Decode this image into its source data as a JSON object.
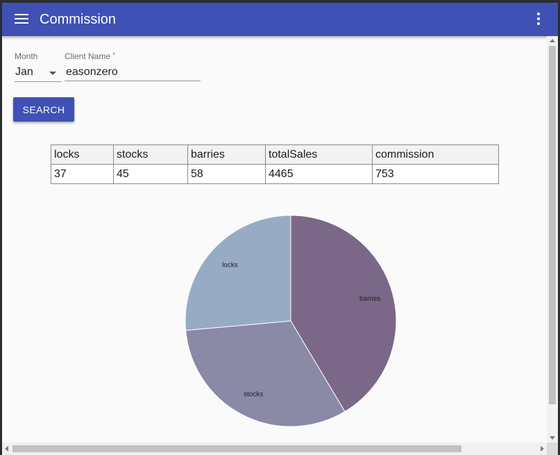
{
  "app": {
    "title": "Commission",
    "menu_icon": "hamburger-menu-icon",
    "more_icon": "more-vert-icon",
    "primary_color": "#3f51b5"
  },
  "form": {
    "month_label": "Month",
    "month_value": "Jan",
    "client_label": "Client Name",
    "client_required_mark": "*",
    "client_value": "easonzero",
    "search_label": "SEARCH"
  },
  "table": {
    "headers": [
      "locks",
      "stocks",
      "barries",
      "totalSales",
      "commission"
    ],
    "rows": [
      [
        "37",
        "45",
        "58",
        "4465",
        "753"
      ]
    ]
  },
  "chart_data": {
    "type": "pie",
    "title": "",
    "categories": [
      "barries",
      "stocks",
      "locks"
    ],
    "values": [
      58,
      45,
      37
    ],
    "colors": [
      "#7b6888",
      "#8a89a6",
      "#98abc5"
    ],
    "start_angle_deg": 0,
    "direction": "clockwise"
  }
}
